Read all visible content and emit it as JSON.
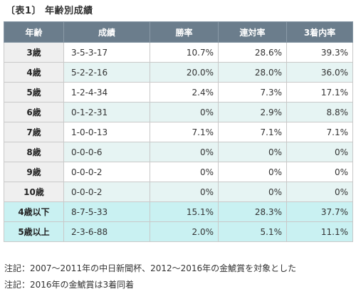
{
  "caption": "〔表1〕 年齢別成績",
  "columns": [
    "年齢",
    "成績",
    "勝率",
    "連対率",
    "3着内率"
  ],
  "rows": [
    {
      "age": "3歳",
      "record": "3-5-3-17",
      "win": "10.7%",
      "quinella": "28.6%",
      "place": "39.3%",
      "style": "odd"
    },
    {
      "age": "4歳",
      "record": "5-2-2-16",
      "win": "20.0%",
      "quinella": "28.0%",
      "place": "36.0%",
      "style": "even"
    },
    {
      "age": "5歳",
      "record": "1-2-4-34",
      "win": "2.4%",
      "quinella": "7.3%",
      "place": "17.1%",
      "style": "odd"
    },
    {
      "age": "6歳",
      "record": "0-1-2-31",
      "win": "0%",
      "quinella": "2.9%",
      "place": "8.8%",
      "style": "even"
    },
    {
      "age": "7歳",
      "record": "1-0-0-13",
      "win": "7.1%",
      "quinella": "7.1%",
      "place": "7.1%",
      "style": "odd"
    },
    {
      "age": "8歳",
      "record": "0-0-0-6",
      "win": "0%",
      "quinella": "0%",
      "place": "0%",
      "style": "even"
    },
    {
      "age": "9歳",
      "record": "0-0-0-2",
      "win": "0%",
      "quinella": "0%",
      "place": "0%",
      "style": "odd"
    },
    {
      "age": "10歳",
      "record": "0-0-0-2",
      "win": "0%",
      "quinella": "0%",
      "place": "0%",
      "style": "even"
    },
    {
      "age": "4歳以下",
      "record": "8-7-5-33",
      "win": "15.1%",
      "quinella": "28.3%",
      "place": "37.7%",
      "style": "summary"
    },
    {
      "age": "5歳以上",
      "record": "2-3-6-88",
      "win": "2.0%",
      "quinella": "5.1%",
      "place": "11.1%",
      "style": "summary"
    }
  ],
  "notes": [
    "注記：2007〜2011年の中日新聞杯、2012〜2016年の金鯱賞を対象とした",
    "注記：2016年の金鯱賞は3着同着"
  ]
}
